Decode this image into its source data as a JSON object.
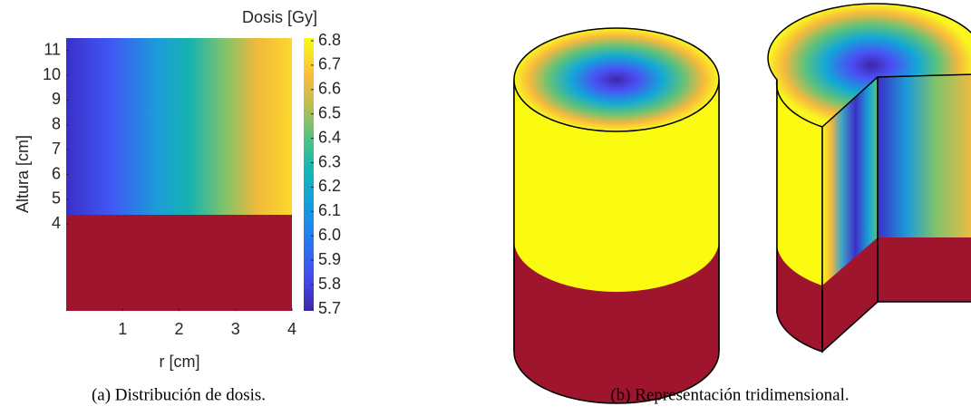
{
  "panel_a": {
    "y_label": "Altura [cm]",
    "x_label": "r [cm]",
    "xlim": [
      0,
      4
    ],
    "xticks": [
      1,
      2,
      3,
      4
    ],
    "ylim": [
      0.5,
      11.5
    ],
    "yticks": [
      4,
      5,
      6,
      7,
      8,
      9,
      10,
      11
    ],
    "colorbar_label": "Dosis [Gy]",
    "clim": [
      5.7,
      6.8
    ],
    "cticks": [
      5.7,
      5.8,
      5.9,
      {
        "value": 6,
        "label": "6.0"
      },
      6.1,
      6.2,
      6.3,
      6.4,
      6.5,
      6.6,
      6.7,
      6.8
    ],
    "caption": "(a) Distribución de dosis."
  },
  "panel_b": {
    "caption": "(b) Representación tridimensional."
  }
}
